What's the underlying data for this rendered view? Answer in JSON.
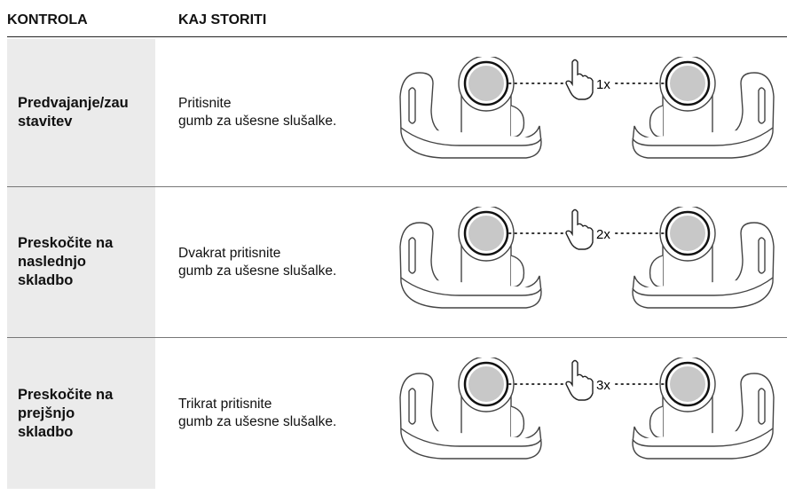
{
  "header": {
    "columns": [
      "KONTROLA",
      "KAJ STORITI"
    ]
  },
  "rows": [
    {
      "control": [
        "Predvajanje/zau",
        "stavitev"
      ],
      "action": [
        "Pritisnite",
        "gumb za ušesne slušalke."
      ],
      "presses": "1x"
    },
    {
      "control": [
        "Preskočite na",
        "naslednjo",
        "skladbo"
      ],
      "action": [
        "Dvakrat pritisnite",
        "gumb za ušesne slušalke."
      ],
      "presses": "2x"
    },
    {
      "control": [
        "Preskočite na",
        "prejšnjo",
        "skladbo"
      ],
      "action": [
        "Trikrat pritisnite",
        "gumb za ušesne slušalke."
      ],
      "presses": "3x"
    }
  ]
}
